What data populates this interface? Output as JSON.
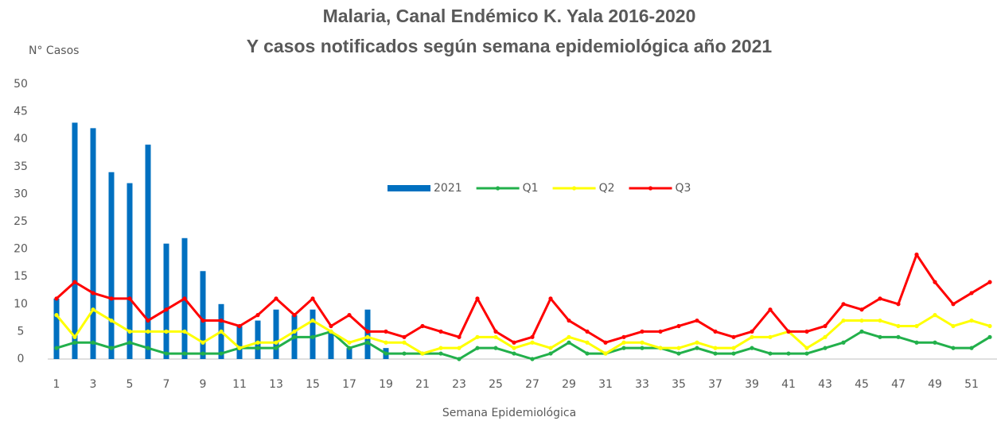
{
  "chart_data": {
    "type": "combo",
    "title": "Malaria, Canal Endémico K. Yala 2016-2020",
    "subtitle": "Y casos notificados según semana epidemiológica año 2021",
    "y_label": "N° Casos",
    "x_label": "Semana Epidemiológica",
    "categories": [
      "1",
      null,
      "3",
      null,
      "5",
      null,
      "7",
      null,
      "9",
      null,
      "11",
      null,
      "13",
      null,
      "15",
      null,
      "17",
      null,
      "19",
      null,
      "21",
      null,
      "23",
      null,
      "25",
      null,
      "27",
      null,
      "29",
      null,
      "31",
      null,
      "33",
      null,
      "35",
      null,
      "37",
      null,
      "39",
      null,
      "41",
      null,
      "43",
      null,
      "45",
      null,
      "47",
      null,
      "49",
      null,
      "51",
      null
    ],
    "ylim": [
      0,
      50
    ],
    "yticks": [
      0,
      5,
      10,
      15,
      20,
      25,
      30,
      35,
      40,
      45,
      50
    ],
    "grid": false,
    "legend": "center",
    "series": [
      {
        "name": "2021",
        "type": "bar",
        "color": "#0070c0",
        "values": [
          11,
          43,
          42,
          34,
          32,
          39,
          21,
          22,
          16,
          10,
          6,
          7,
          9,
          8,
          9,
          5,
          2,
          9,
          2,
          null,
          null,
          null,
          null,
          null,
          null,
          null,
          null,
          null,
          null,
          null,
          null,
          null,
          null,
          null,
          null,
          null,
          null,
          null,
          null,
          null,
          null,
          null,
          null,
          null,
          null,
          null,
          null,
          null,
          null,
          null,
          null,
          null
        ]
      },
      {
        "name": "Q1",
        "type": "line",
        "color": "#22b04b",
        "values": [
          2,
          3,
          3,
          2,
          3,
          2,
          1,
          1,
          1,
          1,
          2,
          2,
          2,
          4,
          4,
          5,
          2,
          3,
          1,
          1,
          1,
          1,
          0,
          2,
          2,
          1,
          0,
          1,
          3,
          1,
          1,
          2,
          2,
          2,
          1,
          2,
          1,
          1,
          2,
          1,
          1,
          1,
          2,
          3,
          5,
          4,
          4,
          3,
          3,
          2,
          2,
          4
        ]
      },
      {
        "name": "Q2",
        "type": "line",
        "color": "#ffff00",
        "values": [
          8,
          4,
          9,
          7,
          5,
          5,
          5,
          5,
          3,
          5,
          2,
          3,
          3,
          5,
          7,
          5,
          3,
          4,
          3,
          3,
          1,
          2,
          2,
          4,
          4,
          2,
          3,
          2,
          4,
          3,
          1,
          3,
          3,
          2,
          2,
          3,
          2,
          2,
          4,
          4,
          5,
          2,
          4,
          7,
          7,
          7,
          6,
          6,
          8,
          6,
          7,
          6
        ]
      },
      {
        "name": "Q3",
        "type": "line",
        "color": "#ff0000",
        "values": [
          11,
          14,
          12,
          11,
          11,
          7,
          9,
          11,
          7,
          7,
          6,
          8,
          11,
          8,
          11,
          6,
          8,
          5,
          5,
          4,
          6,
          5,
          4,
          11,
          5,
          3,
          4,
          11,
          7,
          5,
          3,
          4,
          5,
          5,
          6,
          7,
          5,
          4,
          5,
          9,
          5,
          5,
          6,
          10,
          9,
          11,
          10,
          19,
          14,
          10,
          12,
          14
        ]
      }
    ]
  }
}
